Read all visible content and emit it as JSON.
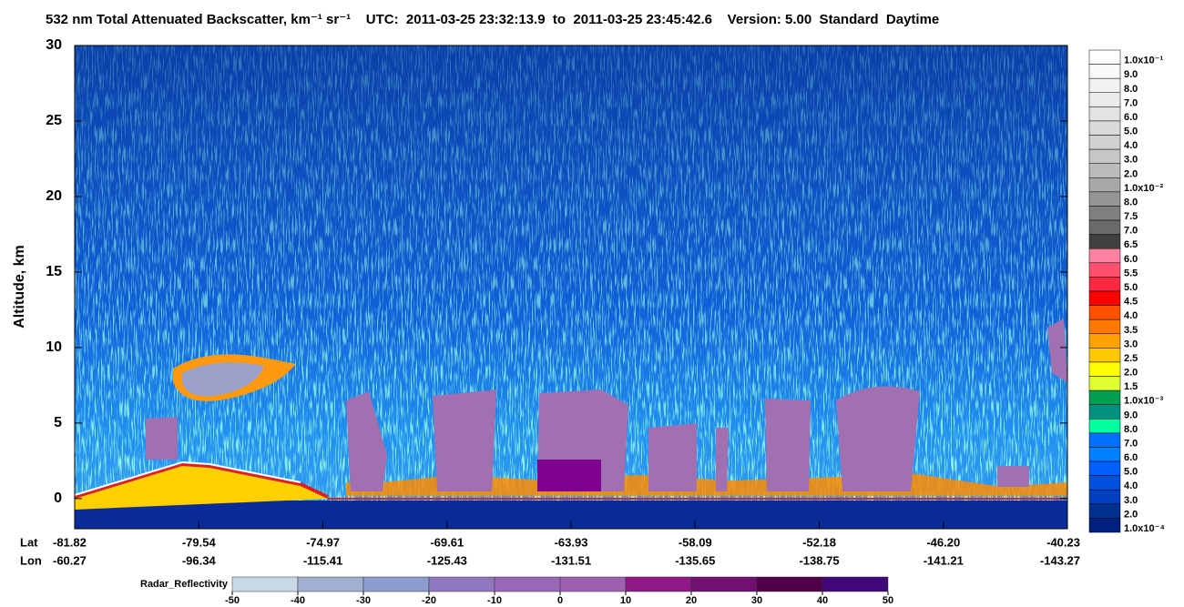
{
  "title": "532 nm Total Attenuated Backscatter, km⁻¹ sr⁻¹    UTC:  2011-03-25 23:32:13.9  to  2011-03-25 23:45:42.6    Version: 5.00  Standard  Daytime",
  "y_axis": {
    "label": "Altitude, km",
    "ylim": [
      -2,
      30
    ],
    "yticks": [
      0,
      5,
      10,
      15,
      20,
      25,
      30
    ]
  },
  "x_axis": {
    "lat_label": "Lat",
    "lon_label": "Lon",
    "lat": [
      "-81.82",
      "-79.54",
      "-74.97",
      "-69.61",
      "-63.93",
      "-58.09",
      "-52.18",
      "-46.20",
      "-40.23"
    ],
    "lon": [
      "-60.27",
      "-96.34",
      "-115.41",
      "-125.43",
      "-131.51",
      "-135.65",
      "-138.75",
      "-141.21",
      "-143.27"
    ]
  },
  "backscatter_colorbar": {
    "bins": [
      {
        "label": "1.0x10⁻¹",
        "color": "#ffffff"
      },
      {
        "label": "9.0",
        "color": "#fafafa"
      },
      {
        "label": "8.0",
        "color": "#f2f2f2"
      },
      {
        "label": "7.0",
        "color": "#ebebeb"
      },
      {
        "label": "6.0",
        "color": "#e3e3e3"
      },
      {
        "label": "5.0",
        "color": "#dadada"
      },
      {
        "label": "4.0",
        "color": "#d0d0d0"
      },
      {
        "label": "3.0",
        "color": "#c6c6c6"
      },
      {
        "label": "2.0",
        "color": "#bbbbbb"
      },
      {
        "label": "1.0x10⁻²",
        "color": "#a8a8a8"
      },
      {
        "label": "8.0",
        "color": "#959595"
      },
      {
        "label": "7.5",
        "color": "#808080"
      },
      {
        "label": "7.0",
        "color": "#6a6a6a"
      },
      {
        "label": "6.5",
        "color": "#404040"
      },
      {
        "label": "6.0",
        "color": "#ff80a0"
      },
      {
        "label": "5.5",
        "color": "#ff5070"
      },
      {
        "label": "5.0",
        "color": "#ff2840"
      },
      {
        "label": "4.5",
        "color": "#ff0000"
      },
      {
        "label": "4.0",
        "color": "#ff5000"
      },
      {
        "label": "3.5",
        "color": "#ff7800"
      },
      {
        "label": "3.0",
        "color": "#ffa000"
      },
      {
        "label": "2.5",
        "color": "#ffc800"
      },
      {
        "label": "2.0",
        "color": "#ffff00"
      },
      {
        "label": "1.5",
        "color": "#e0ff30"
      },
      {
        "label": "1.0x10⁻³",
        "color": "#00a050"
      },
      {
        "label": "9.0",
        "color": "#009080"
      },
      {
        "label": "8.0",
        "color": "#00ffa0"
      },
      {
        "label": "7.0",
        "color": "#0070ff"
      },
      {
        "label": "6.0",
        "color": "#0080ff"
      },
      {
        "label": "5.0",
        "color": "#0060ff"
      },
      {
        "label": "4.0",
        "color": "#0050e0"
      },
      {
        "label": "3.0",
        "color": "#0040c0"
      },
      {
        "label": "2.0",
        "color": "#003090"
      },
      {
        "label": "1.0x10⁻⁴",
        "color": "#002080"
      }
    ]
  },
  "radar_colorbar": {
    "label": "Radar_Reflectivity",
    "lim": [
      -50,
      50
    ],
    "ticks": [
      -50,
      -40,
      -30,
      -20,
      -10,
      0,
      10,
      20,
      30,
      40,
      50
    ],
    "colors": [
      "#c8d8e8",
      "#9fb0d0",
      "#8c9ccc",
      "#9078c0",
      "#9868b8",
      "#a060b0",
      "#901888",
      "#701070",
      "#500048",
      "#400878"
    ]
  }
}
